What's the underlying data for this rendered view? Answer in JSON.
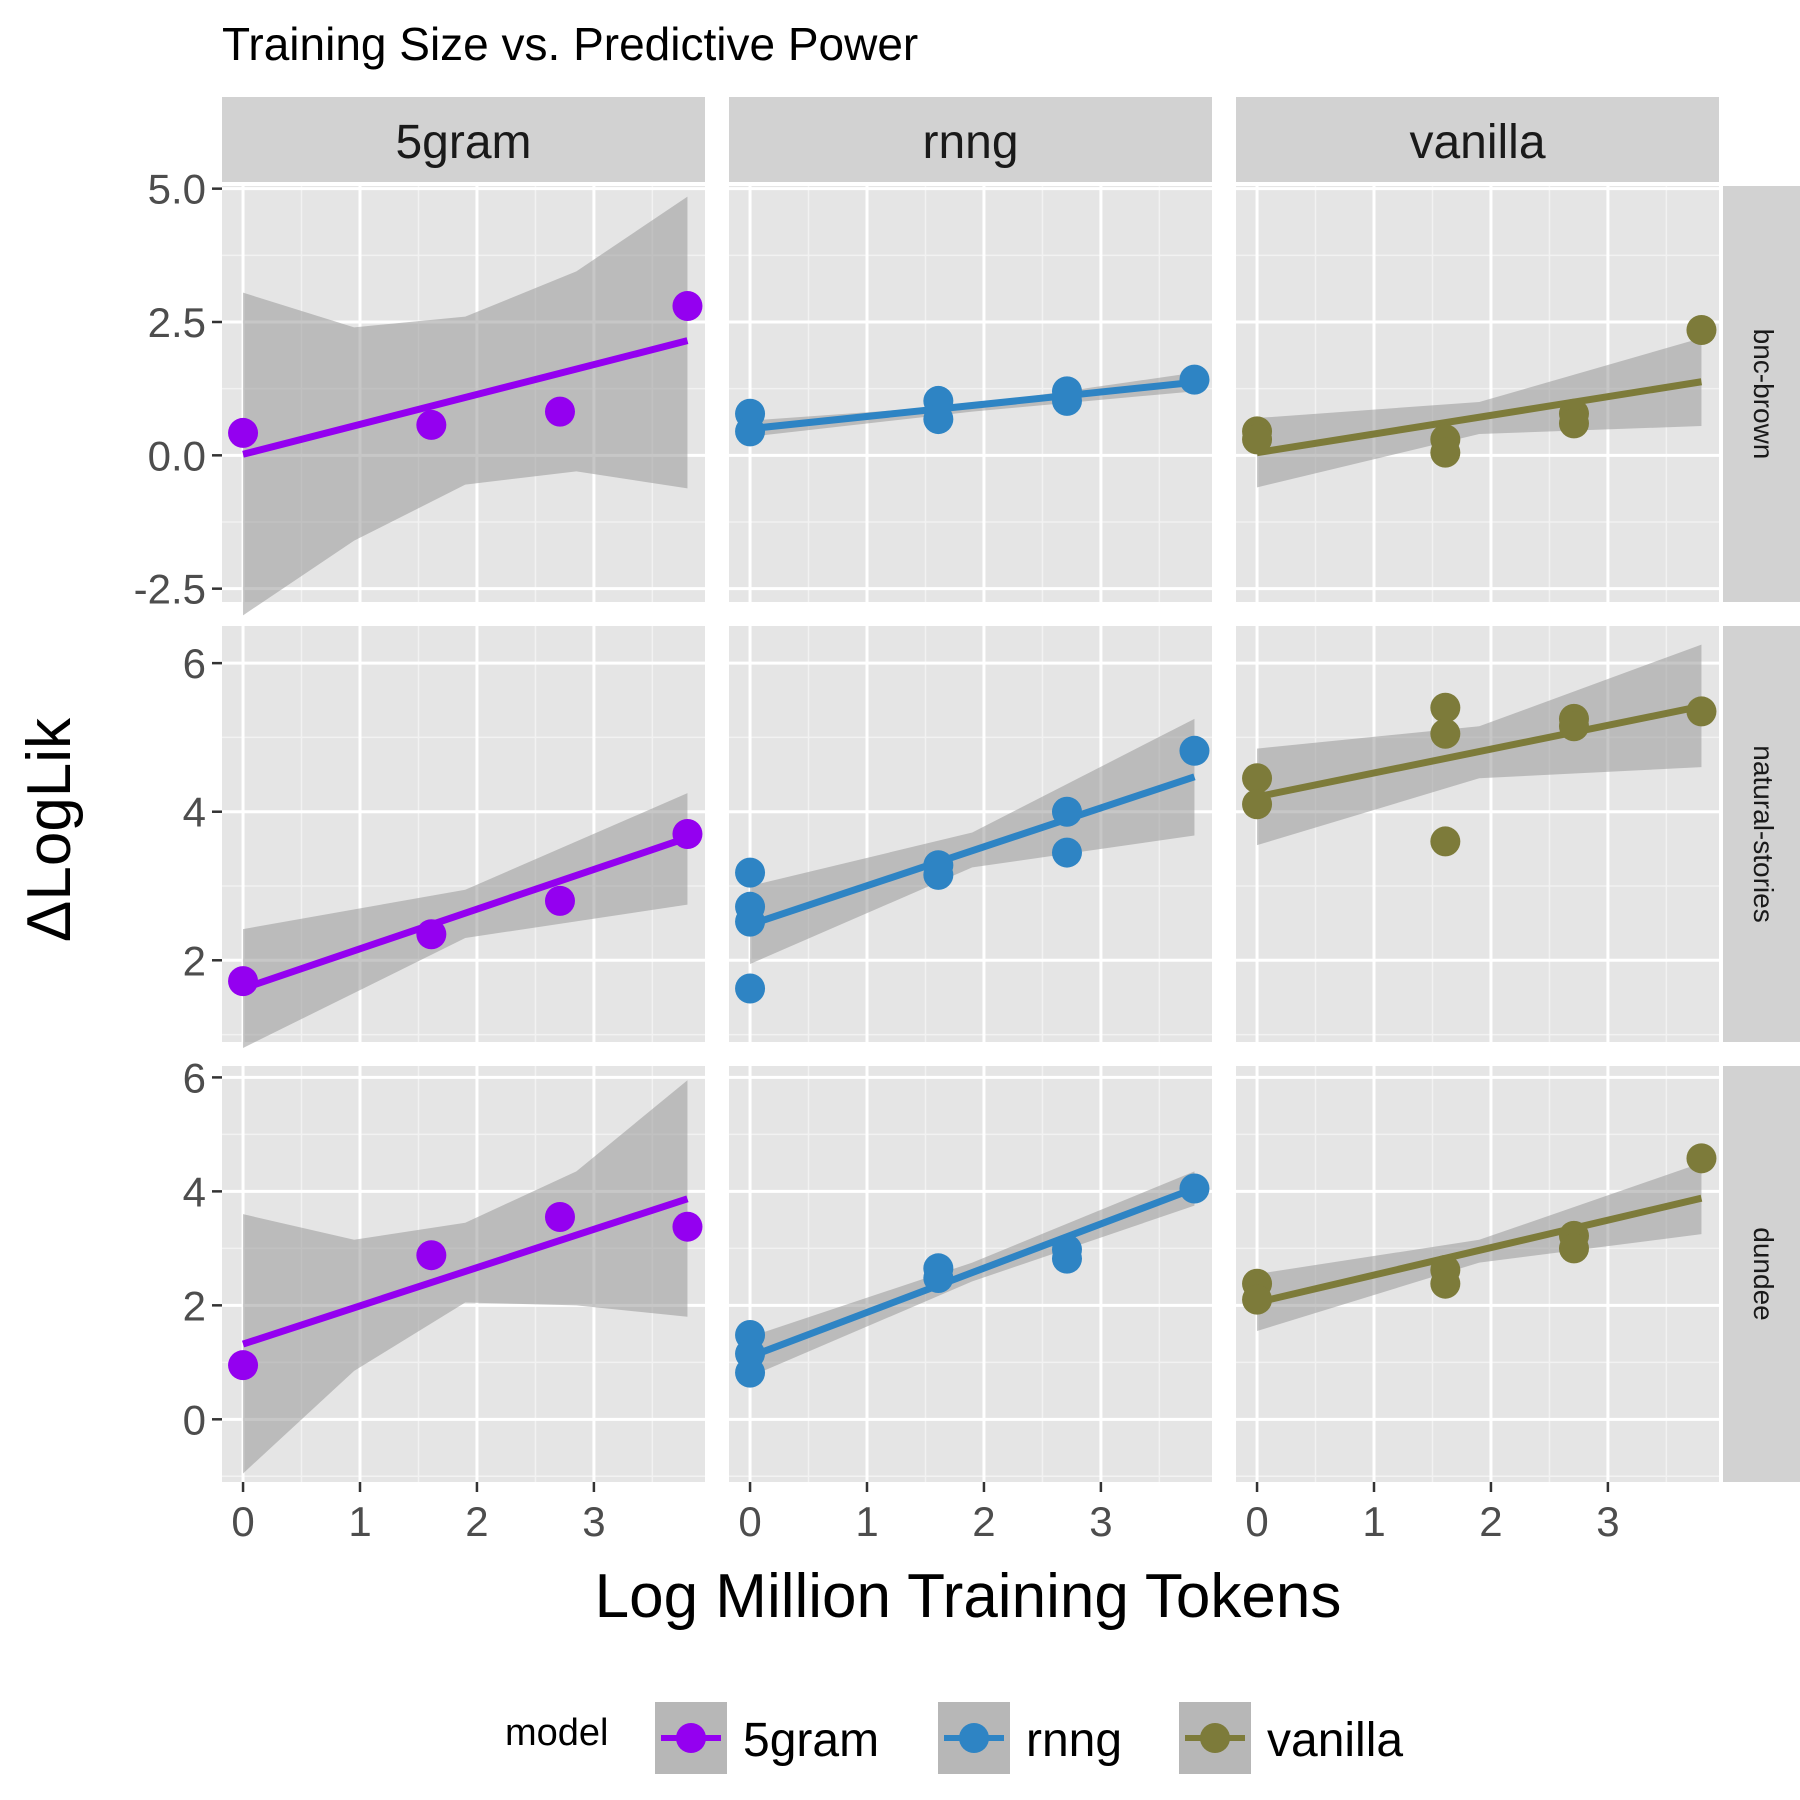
{
  "title": "Training Size vs. Predictive Power",
  "colors": {
    "5gram": "#9400f0",
    "rnng": "#2e84c4",
    "vanilla": "#7d7b3a",
    "panel_bg": "#e5e5e5",
    "strip_bg": "#d2d2d2",
    "ribbon": "#999999"
  },
  "chart_data": {
    "type": "scatter",
    "title": "Training Size vs. Predictive Power",
    "xlabel": "Log Million Training Tokens",
    "ylabel": "ΔLogLik",
    "columns": [
      "5gram",
      "rnng",
      "vanilla"
    ],
    "rows": [
      "bnc-brown",
      "natural-stories",
      "dundee"
    ],
    "xlim": [
      -0.18,
      3.95
    ],
    "x_ticks": [
      "0",
      "1",
      "2",
      "3"
    ],
    "rows_y": [
      {
        "name": "bnc-brown",
        "ylim": [
          -2.75,
          5.05
        ],
        "y_ticks": [
          "-2.5",
          "0.0",
          "2.5",
          "5.0"
        ]
      },
      {
        "name": "natural-stories",
        "ylim": [
          0.9,
          6.5
        ],
        "y_ticks": [
          "2",
          "4",
          "6"
        ]
      },
      {
        "name": "dundee",
        "ylim": [
          -1.1,
          6.2
        ],
        "y_ticks": [
          "0",
          "2",
          "4",
          "6"
        ]
      }
    ],
    "legend": {
      "title": "model",
      "entries": [
        "5gram",
        "rnng",
        "vanilla"
      ],
      "position": "bottom"
    },
    "panels": [
      {
        "row": "bnc-brown",
        "model": "5gram",
        "points": [
          [
            0,
            0.42
          ],
          [
            1.61,
            0.57
          ],
          [
            2.71,
            0.82
          ],
          [
            3.8,
            2.8
          ]
        ],
        "fit": {
          "x": [
            0,
            3.8
          ],
          "y": [
            0.02,
            2.15
          ]
        },
        "band": {
          "x": [
            0,
            0.95,
            1.9,
            2.85,
            3.8
          ],
          "lower": [
            -3.0,
            -1.6,
            -0.55,
            -0.3,
            -0.62
          ],
          "upper": [
            3.05,
            2.4,
            2.6,
            3.45,
            4.85
          ]
        }
      },
      {
        "row": "bnc-brown",
        "model": "rnng",
        "points": [
          [
            0,
            0.78
          ],
          [
            0,
            0.45
          ],
          [
            1.61,
            1.02
          ],
          [
            1.61,
            0.68
          ],
          [
            2.71,
            1.2
          ],
          [
            2.71,
            1.02
          ],
          [
            3.8,
            1.42
          ]
        ],
        "fit": {
          "x": [
            0,
            3.8
          ],
          "y": [
            0.5,
            1.37
          ]
        },
        "band": {
          "x": [
            0,
            1.9,
            3.8
          ],
          "lower": [
            0.35,
            0.82,
            1.2
          ],
          "upper": [
            0.65,
            0.95,
            1.55
          ]
        }
      },
      {
        "row": "bnc-brown",
        "model": "vanilla",
        "points": [
          [
            0,
            0.45
          ],
          [
            0,
            0.3
          ],
          [
            1.61,
            0.3
          ],
          [
            1.61,
            0.05
          ],
          [
            2.71,
            0.78
          ],
          [
            2.71,
            0.6
          ],
          [
            3.8,
            2.35
          ]
        ],
        "fit": {
          "x": [
            0,
            3.8
          ],
          "y": [
            0.05,
            1.38
          ]
        },
        "band": {
          "x": [
            0,
            1.9,
            3.8
          ],
          "lower": [
            -0.6,
            0.4,
            0.55
          ],
          "upper": [
            0.7,
            1.0,
            2.2
          ]
        }
      },
      {
        "row": "natural-stories",
        "model": "5gram",
        "points": [
          [
            0,
            1.72
          ],
          [
            1.61,
            2.35
          ],
          [
            2.71,
            2.8
          ],
          [
            3.8,
            3.7
          ]
        ],
        "fit": {
          "x": [
            0,
            3.8
          ],
          "y": [
            1.62,
            3.65
          ]
        },
        "band": {
          "x": [
            0,
            1.9,
            3.8
          ],
          "lower": [
            0.82,
            2.3,
            2.75
          ],
          "upper": [
            2.42,
            2.95,
            4.25
          ]
        }
      },
      {
        "row": "natural-stories",
        "model": "rnng",
        "points": [
          [
            0,
            3.18
          ],
          [
            0,
            2.72
          ],
          [
            0,
            2.52
          ],
          [
            0,
            1.62
          ],
          [
            1.61,
            3.28
          ],
          [
            1.61,
            3.15
          ],
          [
            2.71,
            4.0
          ],
          [
            2.71,
            3.45
          ],
          [
            3.8,
            4.82
          ]
        ],
        "fit": {
          "x": [
            0,
            3.8
          ],
          "y": [
            2.48,
            4.47
          ]
        },
        "band": {
          "x": [
            0,
            1.9,
            3.8
          ],
          "lower": [
            1.95,
            3.25,
            3.68
          ],
          "upper": [
            3.0,
            3.72,
            5.25
          ]
        }
      },
      {
        "row": "natural-stories",
        "model": "vanilla",
        "points": [
          [
            0,
            4.45
          ],
          [
            0,
            4.1
          ],
          [
            1.61,
            5.4
          ],
          [
            1.61,
            5.05
          ],
          [
            1.61,
            3.6
          ],
          [
            2.71,
            5.25
          ],
          [
            2.71,
            5.15
          ],
          [
            3.8,
            5.35
          ]
        ],
        "fit": {
          "x": [
            0,
            3.8
          ],
          "y": [
            4.2,
            5.42
          ]
        },
        "band": {
          "x": [
            0,
            1.9,
            3.8
          ],
          "lower": [
            3.55,
            4.45,
            4.6
          ],
          "upper": [
            4.85,
            5.15,
            6.25
          ]
        }
      },
      {
        "row": "dundee",
        "model": "5gram",
        "points": [
          [
            0,
            0.95
          ],
          [
            1.61,
            2.88
          ],
          [
            2.71,
            3.55
          ],
          [
            3.8,
            3.38
          ]
        ],
        "fit": {
          "x": [
            0,
            3.8
          ],
          "y": [
            1.32,
            3.87
          ]
        },
        "band": {
          "x": [
            0,
            0.95,
            1.9,
            2.85,
            3.8
          ],
          "lower": [
            -0.95,
            0.85,
            2.05,
            2.0,
            1.8
          ],
          "upper": [
            3.6,
            3.15,
            3.45,
            4.35,
            5.95
          ]
        }
      },
      {
        "row": "dundee",
        "model": "rnng",
        "points": [
          [
            0,
            1.48
          ],
          [
            0,
            1.15
          ],
          [
            0,
            0.82
          ],
          [
            1.61,
            2.65
          ],
          [
            1.61,
            2.48
          ],
          [
            2.71,
            2.98
          ],
          [
            2.71,
            2.82
          ],
          [
            3.8,
            4.05
          ]
        ],
        "fit": {
          "x": [
            0,
            3.8
          ],
          "y": [
            1.1,
            4.05
          ]
        },
        "band": {
          "x": [
            0,
            1.9,
            3.8
          ],
          "lower": [
            0.75,
            2.42,
            3.75
          ],
          "upper": [
            1.45,
            2.75,
            4.35
          ]
        }
      },
      {
        "row": "dundee",
        "model": "vanilla",
        "points": [
          [
            0,
            2.38
          ],
          [
            0,
            2.1
          ],
          [
            1.61,
            2.62
          ],
          [
            1.61,
            2.38
          ],
          [
            2.71,
            3.22
          ],
          [
            2.71,
            3.0
          ],
          [
            3.8,
            4.58
          ]
        ],
        "fit": {
          "x": [
            0,
            3.8
          ],
          "y": [
            2.05,
            3.88
          ]
        },
        "band": {
          "x": [
            0,
            1.9,
            3.8
          ],
          "lower": [
            1.55,
            2.75,
            3.25
          ],
          "upper": [
            2.55,
            3.15,
            4.5
          ]
        }
      }
    ]
  }
}
